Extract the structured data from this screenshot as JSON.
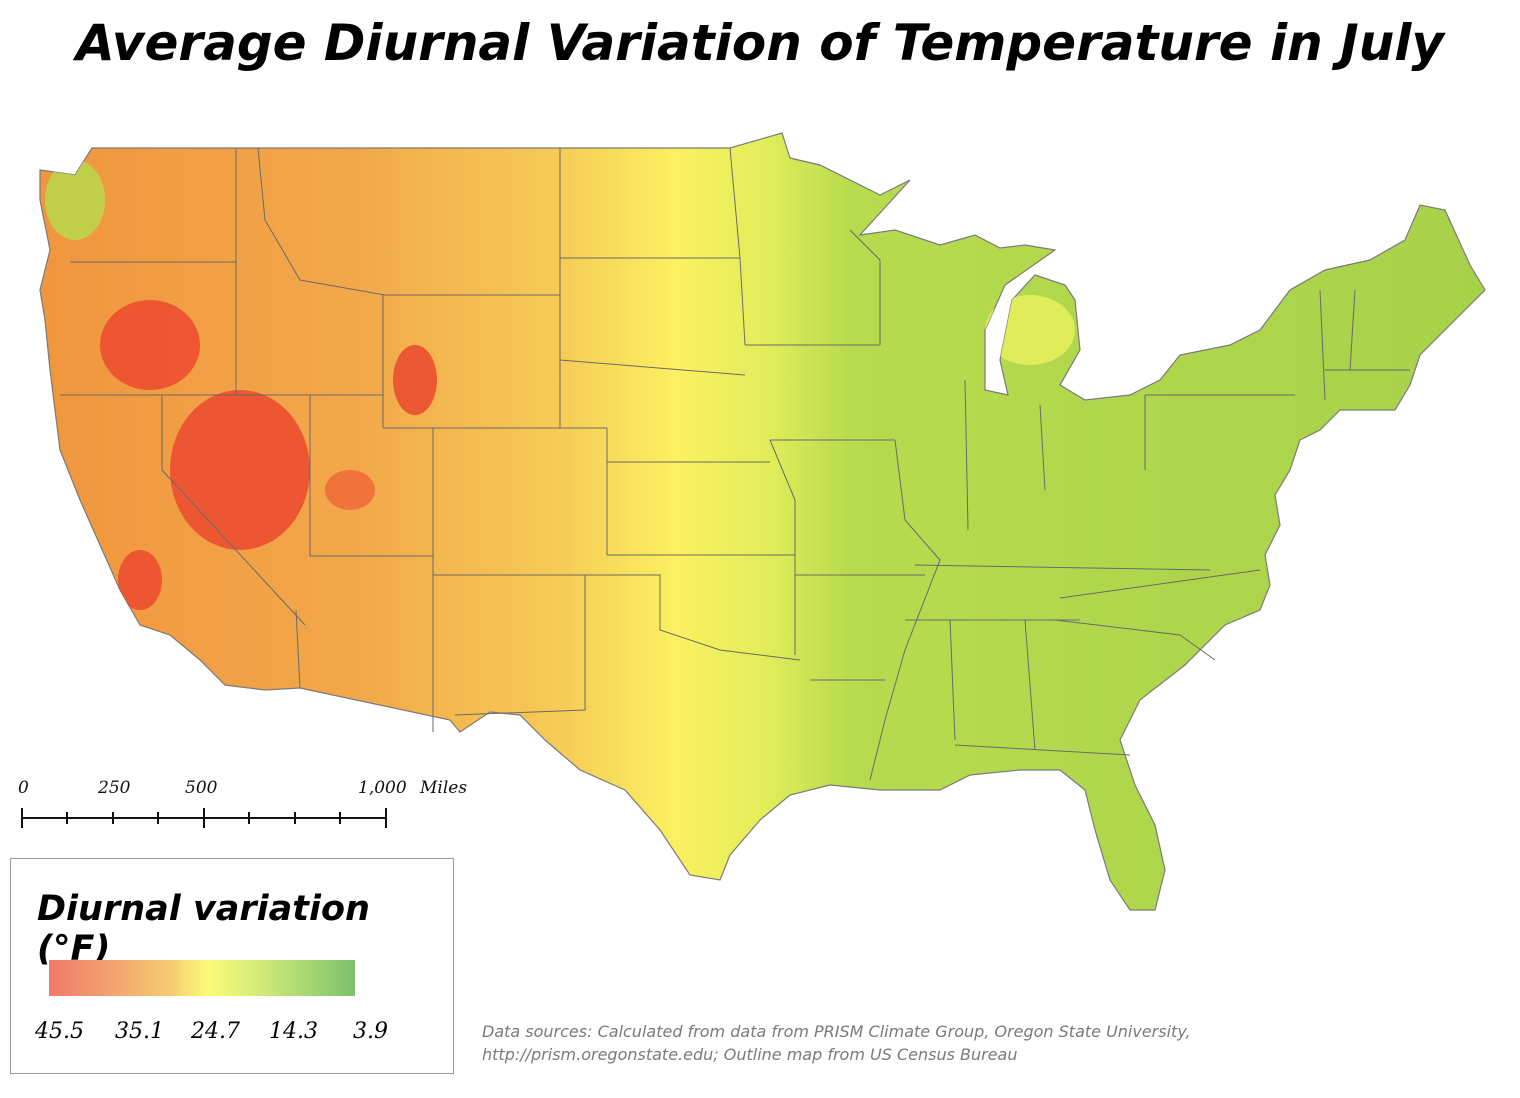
{
  "title": "Average Diurnal Variation of Temperature in July",
  "scale_bar": {
    "labels": [
      "0",
      "250",
      "500",
      "1,000"
    ],
    "unit": "Miles"
  },
  "legend": {
    "title": "Diurnal variation (°F)",
    "labels": [
      "45.5",
      "35.1",
      "24.7",
      "14.3",
      "3.9"
    ],
    "colors": [
      "#f07a6a",
      "#f6cc72",
      "#fbfb78",
      "#a8d873",
      "#7cc06c"
    ]
  },
  "source": {
    "line1": "Data sources: Calculated from data from PRISM Climate Group, Oregon State University,",
    "line2": "http://prism.oregonstate.edu; Outline map from US Census Bureau"
  },
  "palette": {
    "high": "#ee3b2a",
    "mid_high": "#f3a550",
    "mid": "#fbf464",
    "low": "#a6d24e",
    "border": "#6a6a6a"
  }
}
